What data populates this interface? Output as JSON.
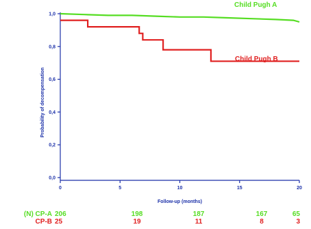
{
  "chart_data": {
    "type": "line",
    "step": true,
    "xlabel": "Follow-up (months)",
    "ylabel": "Probability of decompensation",
    "xlim": [
      0,
      20
    ],
    "ylim": [
      0,
      1.0
    ],
    "x_ticks": [
      0,
      5,
      10,
      15,
      20
    ],
    "x_tick_labels": [
      "0",
      "5",
      "10",
      "15",
      "20"
    ],
    "y_ticks": [
      0,
      0.2,
      0.4,
      0.6,
      0.8,
      1.0
    ],
    "y_tick_labels": [
      "0,0",
      "0,2",
      "0,4",
      "0,6",
      "0,8",
      "1,0"
    ],
    "series": [
      {
        "name": "Child Pugh A",
        "color": "#55dd22",
        "x": [
          0,
          2,
          4,
          6,
          8,
          10,
          12,
          14,
          16,
          18,
          19.5,
          20
        ],
        "y": [
          1.0,
          0.995,
          0.99,
          0.99,
          0.985,
          0.98,
          0.98,
          0.975,
          0.97,
          0.965,
          0.96,
          0.95
        ]
      },
      {
        "name": "Child Pugh B",
        "color": "#e02020",
        "x": [
          0,
          2.3,
          2.3,
          6.6,
          6.6,
          6.9,
          6.9,
          8.6,
          8.6,
          12.6,
          12.6,
          20
        ],
        "y": [
          0.96,
          0.96,
          0.92,
          0.92,
          0.88,
          0.88,
          0.84,
          0.84,
          0.78,
          0.78,
          0.71,
          0.71
        ]
      }
    ]
  },
  "risk_table": {
    "header_a": "(N) CP-A",
    "header_b": "CP-B",
    "color_a": "#55dd22",
    "color_b": "#e02020",
    "x_positions": [
      0,
      5,
      10,
      15,
      20
    ],
    "cp_a": [
      "206",
      "198",
      "187",
      "167",
      "65"
    ],
    "cp_b": [
      "25",
      "19",
      "11",
      "8",
      "3"
    ]
  }
}
